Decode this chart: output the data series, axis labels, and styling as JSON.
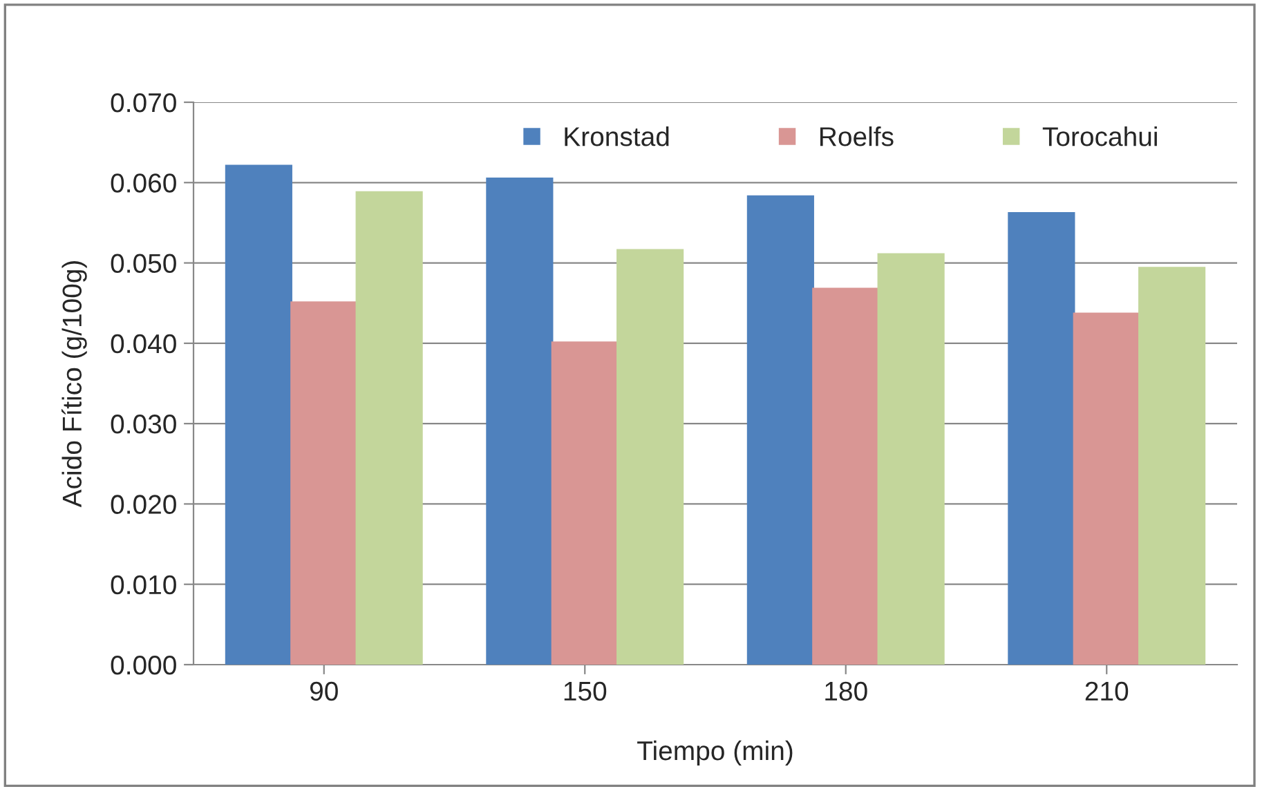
{
  "chart_data": {
    "type": "bar",
    "xlabel": "Tiempo (min)",
    "ylabel": "Acido Fítico (g/100g)",
    "categories": [
      "90",
      "150",
      "180",
      "210"
    ],
    "series": [
      {
        "name": "Kronstad",
        "color": "#4f81bd",
        "values": [
          0.0621,
          0.0605,
          0.0583,
          0.0562
        ]
      },
      {
        "name": "Roelfs",
        "color": "#d99694",
        "values": [
          0.0451,
          0.0401,
          0.0468,
          0.0437
        ]
      },
      {
        "name": "Torocahui",
        "color": "#c3d69b",
        "values": [
          0.0588,
          0.0516,
          0.0511,
          0.0494
        ]
      }
    ],
    "ylim": [
      0,
      0.07
    ],
    "yticks": [
      {
        "value": 0,
        "label": "0.000"
      },
      {
        "value": 0.01,
        "label": "0.010"
      },
      {
        "value": 0.02,
        "label": "0.020"
      },
      {
        "value": 0.03,
        "label": "0.030"
      },
      {
        "value": 0.04,
        "label": "0.040"
      },
      {
        "value": 0.05,
        "label": "0.050"
      },
      {
        "value": 0.06,
        "label": "0.060"
      },
      {
        "value": 0.07,
        "label": "0.070"
      }
    ],
    "grid": "y",
    "legend": "top"
  }
}
